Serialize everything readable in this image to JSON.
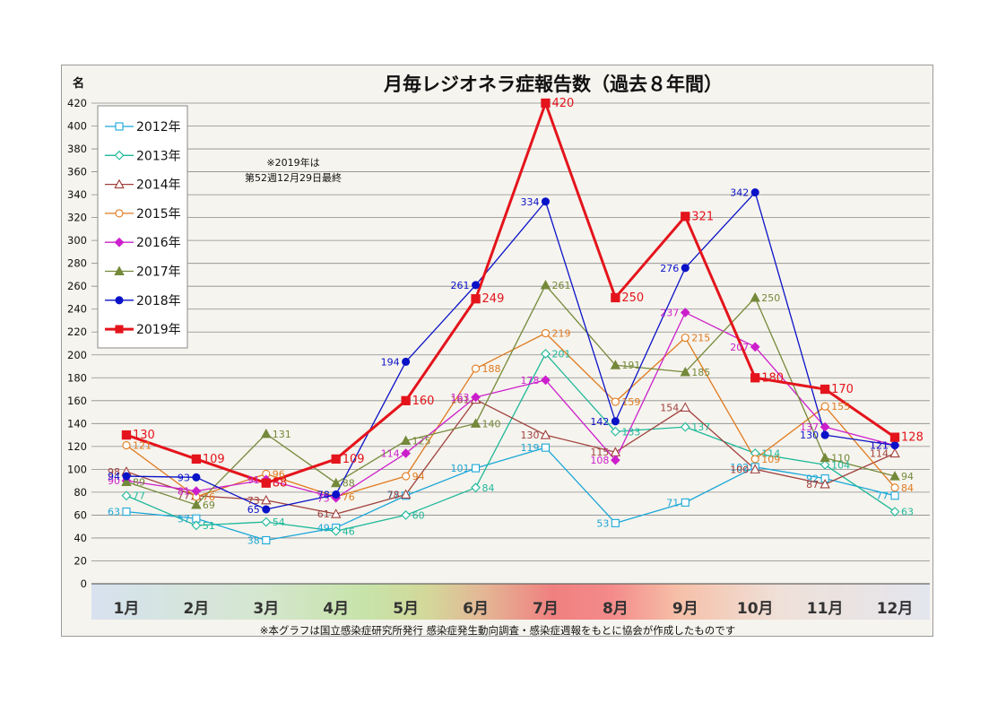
{
  "chart_data": {
    "type": "line",
    "title": "月毎レジオネラ症報告数（過去８年間）",
    "ylabel": "名",
    "ylim": [
      0,
      420
    ],
    "yticks": [
      0,
      20,
      40,
      60,
      80,
      100,
      120,
      140,
      160,
      180,
      200,
      220,
      240,
      260,
      280,
      300,
      320,
      340,
      360,
      380,
      400,
      420
    ],
    "grid": true,
    "legend_position": "top-left",
    "categories": [
      "1月",
      "2月",
      "3月",
      "4月",
      "5月",
      "6月",
      "7月",
      "8月",
      "9月",
      "10月",
      "11月",
      "12月"
    ],
    "note_lines": [
      "※2019年は",
      "第52週12月29日最終"
    ],
    "source_note": "※本グラフは国立感染症研究所発行 感染症発生動向調査・感染症週報をもとに協会が作成したものです",
    "series": [
      {
        "name": "2012年",
        "color": "#1aa7d8",
        "marker": "square-open",
        "values": [
          63,
          57,
          38,
          49,
          77,
          101,
          119,
          53,
          71,
          102,
          92,
          77
        ]
      },
      {
        "name": "2013年",
        "color": "#1fb89a",
        "marker": "diamond-open",
        "values": [
          77,
          51,
          54,
          46,
          60,
          84,
          201,
          133,
          137,
          114,
          104,
          63
        ]
      },
      {
        "name": "2014年",
        "color": "#a0403c",
        "marker": "triangle-open",
        "values": [
          98,
          77,
          73,
          61,
          78,
          161,
          130,
          115,
          154,
          100,
          87,
          114
        ]
      },
      {
        "name": "2015年",
        "color": "#e07a1f",
        "marker": "circle-open",
        "values": [
          121,
          76,
          96,
          76,
          94,
          188,
          219,
          159,
          215,
          109,
          155,
          84
        ]
      },
      {
        "name": "2016年",
        "color": "#cc1fcc",
        "marker": "diamond",
        "values": [
          90,
          81,
          91,
          75,
          114,
          163,
          178,
          108,
          237,
          207,
          137,
          121
        ]
      },
      {
        "name": "2017年",
        "color": "#74893a",
        "marker": "triangle",
        "values": [
          89,
          69,
          131,
          88,
          125,
          140,
          261,
          191,
          185,
          250,
          110,
          94
        ]
      },
      {
        "name": "2018年",
        "color": "#0a12c8",
        "marker": "circle",
        "values": [
          94,
          93,
          65,
          78,
          194,
          261,
          334,
          142,
          276,
          342,
          130,
          121
        ]
      },
      {
        "name": "2019年",
        "color": "#e4141c",
        "marker": "square",
        "values": [
          130,
          109,
          88,
          109,
          160,
          249,
          420,
          250,
          321,
          180,
          170,
          128
        ]
      }
    ]
  }
}
